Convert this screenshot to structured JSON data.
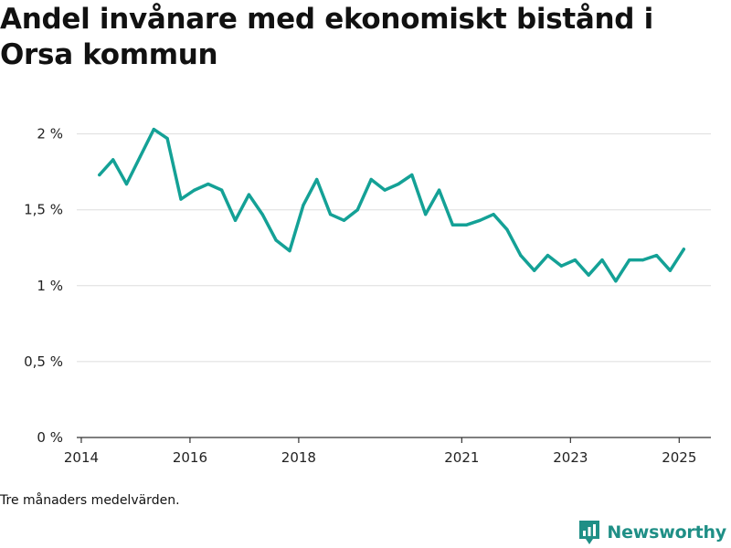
{
  "title": "Andel invånare med ekonomiskt bistånd i Orsa kommun",
  "note": "Tre månaders medelvärden.",
  "brand": "Newsworthy",
  "colors": {
    "line": "#14a196",
    "brand": "#1f8f86",
    "grid": "#dddddd"
  },
  "chart_data": {
    "type": "line",
    "title": "Andel invånare med ekonomiskt bistånd i Orsa kommun",
    "xlabel": "",
    "ylabel": "",
    "x_tick_labels": [
      "2014",
      "2016",
      "2018",
      "2021",
      "2023",
      "2025"
    ],
    "y_tick_labels": [
      "0 %",
      "0,5 %",
      "1 %",
      "1,5 %",
      "2 %"
    ],
    "y_tick_values": [
      0,
      0.5,
      1,
      1.5,
      2
    ],
    "ylim": [
      0,
      2.1
    ],
    "xlim": [
      "2013-12",
      "2025-08"
    ],
    "grid": true,
    "legend": "none",
    "series": [
      {
        "x": [
          "2014-05",
          "2014-08",
          "2014-11",
          "2015-02",
          "2015-05",
          "2015-08",
          "2015-11",
          "2016-02",
          "2016-05",
          "2016-08",
          "2016-11",
          "2017-02",
          "2017-05",
          "2017-08",
          "2017-11",
          "2018-02",
          "2018-05",
          "2018-08",
          "2018-11",
          "2019-02",
          "2019-05",
          "2019-08",
          "2019-11",
          "2020-02",
          "2020-05",
          "2020-08",
          "2020-11",
          "2021-02",
          "2021-05",
          "2021-08",
          "2021-11",
          "2022-02",
          "2022-05",
          "2022-08",
          "2022-11",
          "2023-02",
          "2023-05",
          "2023-08",
          "2023-11",
          "2024-02",
          "2024-05",
          "2024-08",
          "2024-11",
          "2025-02"
        ],
        "values": [
          1.73,
          1.83,
          1.67,
          1.85,
          2.03,
          1.97,
          1.57,
          1.63,
          1.67,
          1.63,
          1.43,
          1.6,
          1.47,
          1.3,
          1.23,
          1.53,
          1.7,
          1.47,
          1.43,
          1.5,
          1.7,
          1.63,
          1.67,
          1.73,
          1.47,
          1.63,
          1.4,
          1.4,
          1.43,
          1.47,
          1.37,
          1.2,
          1.1,
          1.2,
          1.13,
          1.17,
          1.07,
          1.17,
          1.03,
          1.17,
          1.17,
          1.2,
          1.1,
          1.24
        ]
      }
    ]
  }
}
